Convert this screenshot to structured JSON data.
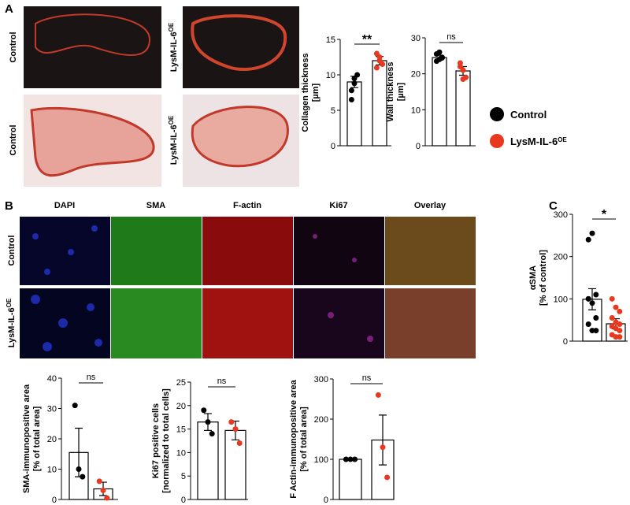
{
  "panel_labels": [
    "A",
    "B",
    "C"
  ],
  "panel_a": {
    "image_labels": [
      {
        "label": "Control"
      },
      {
        "label": "LysM-IL-6",
        "sup": "OE"
      },
      {
        "label": "Control"
      },
      {
        "label": "LysM-IL-6",
        "sup": "OE"
      }
    ]
  },
  "legend": [
    {
      "label": "Control",
      "color": "#000000"
    },
    {
      "label": "LysM-IL-6",
      "sup": "OE",
      "color": "#e8381f"
    }
  ],
  "panel_b": {
    "stains": [
      "DAPI",
      "SMA",
      "F-actin",
      "Ki67",
      "Overlay"
    ],
    "rows": [
      {
        "label": "Control"
      },
      {
        "label": "LysM-IL-6",
        "sup": "OE"
      }
    ]
  },
  "chart_data": [
    {
      "type": "bar",
      "y_label": [
        "Collagen thickness",
        "[µm]"
      ],
      "ylim": [
        0,
        15
      ],
      "yticks": [
        0,
        5,
        10,
        15
      ],
      "significance": "**",
      "groups": [
        {
          "color": "#000000",
          "value": 9,
          "error": 0.8,
          "points": [
            7.8,
            9.5,
            10,
            6.5,
            8.8
          ]
        },
        {
          "color": "#e8381f",
          "value": 12,
          "error": 0.6,
          "points": [
            13,
            12.5,
            11.5,
            11,
            12
          ]
        }
      ]
    },
    {
      "type": "bar",
      "y_label": [
        "Wall thickness",
        "[µm]"
      ],
      "ylim": [
        0,
        30
      ],
      "yticks": [
        0,
        10,
        20,
        30
      ],
      "significance": "ns",
      "groups": [
        {
          "color": "#000000",
          "value": 24.5,
          "error": 0.7,
          "points": [
            25.5,
            24,
            24.5,
            23.5,
            26
          ]
        },
        {
          "color": "#e8381f",
          "value": 20.8,
          "error": 1.2,
          "points": [
            23,
            21,
            19,
            22,
            18.5
          ]
        }
      ]
    },
    {
      "type": "bar",
      "y_label": [
        "αSMA",
        "[% of control]"
      ],
      "ylim": [
        0,
        300
      ],
      "yticks": [
        0,
        100,
        200,
        300
      ],
      "significance": "*",
      "groups": [
        {
          "color": "#000000",
          "value": 99,
          "error": 25,
          "points": [
            240,
            255,
            110,
            100,
            90,
            55,
            40,
            25,
            25,
            100
          ]
        },
        {
          "color": "#e8381f",
          "value": 41,
          "error": 12,
          "points": [
            100,
            80,
            70,
            55,
            45,
            40,
            35,
            30,
            25,
            15,
            10,
            10
          ]
        }
      ]
    },
    {
      "type": "bar",
      "y_label": [
        "SMA-immunopositive area",
        "[% of total area]"
      ],
      "ylim": [
        0,
        40
      ],
      "yticks": [
        0,
        10,
        20,
        30,
        40
      ],
      "significance": "ns",
      "groups": [
        {
          "color": "#000000",
          "value": 15.5,
          "error": 8,
          "points": [
            31,
            10,
            7.5
          ]
        },
        {
          "color": "#e8381f",
          "value": 3.5,
          "error": 2.2,
          "points": [
            6,
            3,
            0.5
          ]
        }
      ]
    },
    {
      "type": "bar",
      "y_label": [
        "Ki67 positive cells",
        "[normalized to total cells]"
      ],
      "ylim": [
        0,
        25
      ],
      "yticks": [
        0,
        5,
        10,
        15,
        20,
        25
      ],
      "significance": "ns",
      "groups": [
        {
          "color": "#000000",
          "value": 16.5,
          "error": 1.8,
          "points": [
            19,
            16.5,
            14
          ]
        },
        {
          "color": "#e8381f",
          "value": 14.7,
          "error": 2,
          "points": [
            16.5,
            15,
            12
          ]
        }
      ]
    },
    {
      "type": "bar",
      "y_label": [
        "F Actin-immunopositive area",
        "[% of total area]"
      ],
      "ylim": [
        0,
        300
      ],
      "yticks": [
        0,
        100,
        200,
        300
      ],
      "significance": "ns",
      "groups": [
        {
          "color": "#000000",
          "value": 100,
          "error": 0,
          "points": [
            100,
            100,
            100
          ]
        },
        {
          "color": "#e8381f",
          "value": 148,
          "error": 62,
          "points": [
            260,
            130,
            55
          ]
        }
      ]
    }
  ]
}
